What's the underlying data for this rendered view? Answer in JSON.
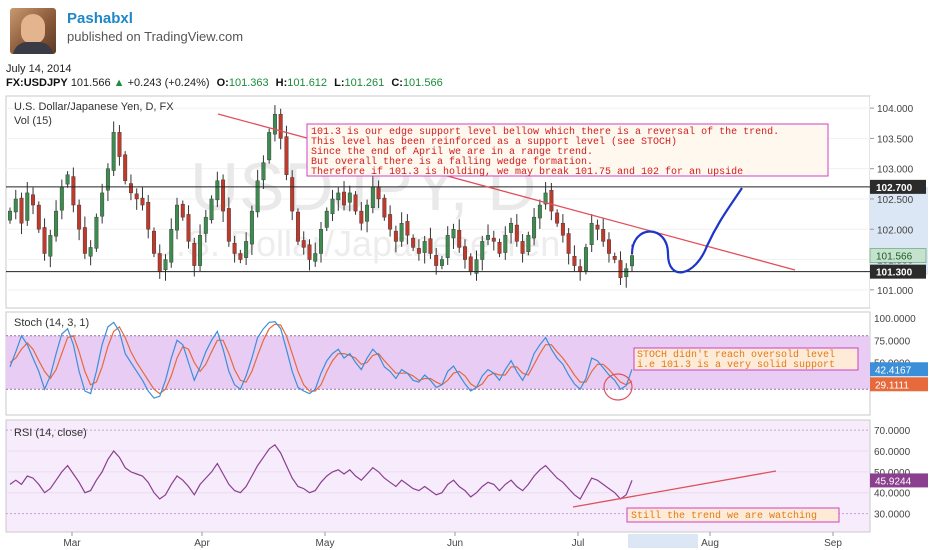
{
  "header": {
    "author": "Pashabxl",
    "published": "published on TradingView.com",
    "date": "July 14, 2014"
  },
  "quote": {
    "symbol": "FX:USDJPY",
    "last": "101.566",
    "change": "+0.243 (+0.24%)",
    "open_label": "O:",
    "open": "101.363",
    "high_label": "H:",
    "high": "101.612",
    "low_label": "L:",
    "low": "101.261",
    "close_label": "C:",
    "close": "101.566"
  },
  "colors": {
    "up": "#3d8b4f",
    "down": "#c0392b",
    "stoch_k": "#3b8fd9",
    "stoch_d": "#e66a3c",
    "rsi": "#8a3f8f",
    "trend": "#e0505a",
    "projection": "#1d35c9"
  },
  "chart_data": [
    {
      "type": "candlestick",
      "title": "U.S. Dollar/Japanese Yen, D, FX",
      "subtitle": "Vol (15)",
      "watermark": "USDJPY, D",
      "watermark_sub": "U.S. Dollar/Japanese Yen",
      "ylim": [
        100.7,
        104.2
      ],
      "y_ticks": [
        "104.000",
        "103.500",
        "103.000",
        "102.500",
        "102.000",
        "101.500",
        "101.000"
      ],
      "x_ticks": [
        "Mar",
        "Apr",
        "May",
        "Jun",
        "Jul",
        "Aug",
        "Sep"
      ],
      "last_price_label": "101.566",
      "levels": [
        {
          "value": 102.7,
          "label": "102.700"
        },
        {
          "value": 101.3,
          "label": "101.300"
        }
      ],
      "annotation": [
        "101.3 is our edge support level bellow which there is a reversal of the trend.",
        "This level has been reinforced as a support level (see STOCH)",
        "Since the end of April we are in a range trend.",
        "But overall there is a falling wedge formation.",
        "Therefore if 101.3 is holding, we may break 101.75 and 102 for an upside"
      ],
      "candles_close": [
        102.3,
        102.5,
        102.1,
        102.6,
        102.4,
        102.0,
        101.6,
        101.9,
        102.3,
        102.7,
        102.9,
        102.4,
        102.0,
        101.6,
        101.7,
        102.2,
        102.6,
        103.0,
        103.6,
        103.2,
        102.8,
        102.6,
        102.5,
        102.4,
        102.0,
        101.6,
        101.3,
        101.5,
        102.0,
        102.4,
        102.2,
        101.8,
        101.4,
        101.9,
        102.2,
        102.5,
        102.8,
        102.3,
        101.8,
        101.6,
        101.5,
        101.8,
        102.3,
        102.8,
        103.1,
        103.6,
        103.9,
        103.5,
        102.9,
        102.3,
        101.8,
        101.7,
        101.5,
        101.6,
        102.0,
        102.3,
        102.5,
        102.6,
        102.4,
        102.6,
        102.3,
        102.1,
        102.4,
        102.7,
        102.5,
        102.2,
        102.0,
        101.8,
        102.1,
        101.9,
        101.7,
        101.6,
        101.8,
        101.6,
        101.4,
        101.5,
        101.9,
        102.0,
        101.7,
        101.5,
        101.3,
        101.5,
        101.8,
        101.9,
        101.8,
        101.6,
        101.9,
        102.1,
        101.8,
        101.6,
        101.9,
        102.2,
        102.4,
        102.6,
        102.3,
        102.1,
        101.9,
        101.6,
        101.4,
        101.3,
        101.7,
        102.1,
        102.0,
        101.8,
        101.6,
        101.5,
        101.2,
        101.35,
        101.566
      ],
      "projection": "curved path down to ~101.3 then up toward 102.7",
      "trendline": "falling red line from early April high toward right edge"
    },
    {
      "type": "line",
      "title": "Stoch (14, 3, 1)",
      "ylim": [
        0,
        100
      ],
      "y_ticks": [
        "100.0000",
        "75.0000",
        "50.0000",
        "25.0000"
      ],
      "band": [
        20,
        80
      ],
      "series": [
        {
          "name": "%K",
          "value_label": "42.4167",
          "values": [
            45,
            62,
            80,
            70,
            55,
            40,
            20,
            35,
            60,
            82,
            88,
            70,
            40,
            18,
            15,
            40,
            70,
            90,
            95,
            85,
            60,
            50,
            40,
            30,
            18,
            10,
            12,
            30,
            55,
            75,
            70,
            50,
            30,
            45,
            62,
            75,
            85,
            65,
            40,
            25,
            20,
            35,
            55,
            78,
            88,
            95,
            96,
            88,
            65,
            40,
            22,
            18,
            15,
            20,
            38,
            52,
            60,
            65,
            55,
            60,
            50,
            42,
            55,
            65,
            58,
            45,
            40,
            32,
            42,
            38,
            30,
            28,
            36,
            30,
            22,
            25,
            40,
            46,
            36,
            26,
            18,
            22,
            35,
            42,
            38,
            30,
            42,
            52,
            40,
            30,
            42,
            60,
            70,
            78,
            65,
            55,
            48,
            36,
            26,
            20,
            32,
            55,
            52,
            44,
            36,
            30,
            20,
            24,
            42.4
          ]
        },
        {
          "name": "%D",
          "value_label": "29.1111",
          "values": [
            50,
            55,
            65,
            72,
            65,
            52,
            40,
            32,
            42,
            60,
            78,
            80,
            62,
            40,
            25,
            28,
            45,
            68,
            85,
            90,
            78,
            62,
            50,
            40,
            30,
            20,
            15,
            20,
            35,
            55,
            68,
            65,
            50,
            40,
            48,
            62,
            75,
            75,
            60,
            42,
            30,
            28,
            40,
            58,
            75,
            88,
            93,
            92,
            80,
            60,
            40,
            25,
            18,
            18,
            25,
            40,
            52,
            60,
            60,
            58,
            55,
            48,
            50,
            58,
            60,
            52,
            45,
            38,
            38,
            38,
            35,
            30,
            32,
            32,
            28,
            25,
            30,
            38,
            40,
            35,
            26,
            22,
            26,
            35,
            38,
            36,
            36,
            45,
            45,
            38,
            36,
            48,
            60,
            70,
            70,
            62,
            55,
            46,
            36,
            28,
            28,
            40,
            48,
            48,
            42,
            35,
            28,
            25,
            29.1
          ]
        }
      ],
      "annotation": [
        "STOCH didn't reach oversold level",
        "i.e 101.3 is a very solid support"
      ]
    },
    {
      "type": "line",
      "title": "RSI (14, close)",
      "ylim": [
        25,
        72
      ],
      "y_ticks": [
        "70.0000",
        "60.0000",
        "50.0000",
        "40.0000",
        "30.0000"
      ],
      "series": [
        {
          "name": "RSI",
          "value_label": "45.9244",
          "values": [
            44,
            46,
            44,
            48,
            47,
            44,
            40,
            42,
            46,
            50,
            53,
            49,
            45,
            40,
            41,
            46,
            50,
            56,
            60,
            57,
            52,
            50,
            49,
            48,
            45,
            40,
            37,
            39,
            44,
            48,
            46,
            43,
            39,
            44,
            47,
            50,
            54,
            49,
            44,
            41,
            40,
            43,
            48,
            53,
            57,
            61,
            63,
            59,
            53,
            47,
            43,
            42,
            40,
            41,
            45,
            48,
            50,
            51,
            49,
            51,
            48,
            46,
            49,
            52,
            50,
            47,
            45,
            43,
            46,
            44,
            42,
            41,
            43,
            41,
            39,
            40,
            44,
            46,
            43,
            41,
            38,
            40,
            43,
            45,
            44,
            41,
            44,
            46,
            43,
            41,
            44,
            48,
            51,
            53,
            50,
            47,
            45,
            42,
            39,
            37,
            42,
            47,
            46,
            44,
            42,
            40,
            37,
            39,
            45.9
          ]
        }
      ],
      "annotation": [
        "Still the trend we are watching"
      ]
    }
  ]
}
